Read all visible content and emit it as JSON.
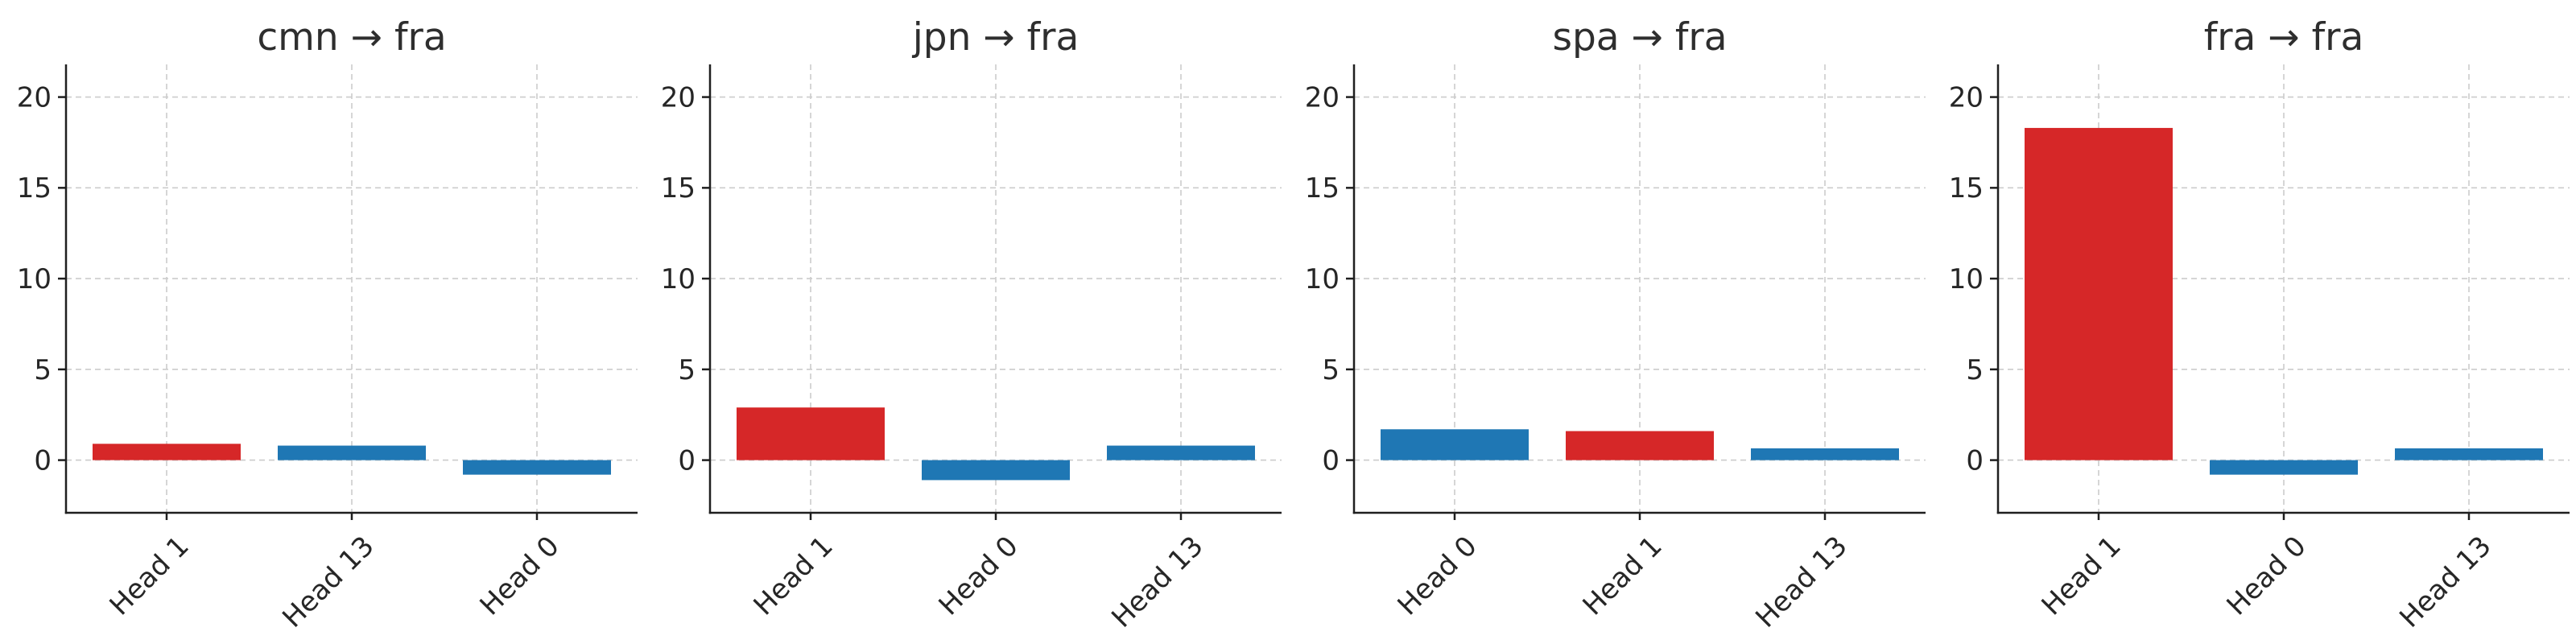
{
  "page": {
    "background": "#ffffff",
    "description_labels": {
      "arrow_glyph": "→"
    }
  },
  "palette": {
    "bar_red": "#d62728",
    "bar_blue": "#1f77b4",
    "grid": "#cccccc",
    "axis": "#1f1f1f",
    "tick_text": "#262626",
    "title_text": "#2e2e2e"
  },
  "chart_data": [
    {
      "type": "bar",
      "title": "cmn → fra",
      "categories": [
        "Head 1",
        "Head 13",
        "Head 0"
      ],
      "values": [
        0.9,
        0.8,
        -0.8
      ],
      "bar_colors": [
        "#d62728",
        "#1f77b4",
        "#1f77b4"
      ],
      "xlabel": "",
      "ylabel": "",
      "ylim": [
        -2.9,
        21.8
      ],
      "yticks": [
        0,
        5,
        10,
        15,
        20
      ],
      "grid": true,
      "legend": false,
      "xtick_rotation": 45
    },
    {
      "type": "bar",
      "title": "jpn → fra",
      "categories": [
        "Head 1",
        "Head 0",
        "Head 13"
      ],
      "values": [
        2.9,
        -1.1,
        0.8
      ],
      "bar_colors": [
        "#d62728",
        "#1f77b4",
        "#1f77b4"
      ],
      "xlabel": "",
      "ylabel": "",
      "ylim": [
        -2.9,
        21.8
      ],
      "yticks": [
        0,
        5,
        10,
        15,
        20
      ],
      "grid": true,
      "legend": false,
      "xtick_rotation": 45
    },
    {
      "type": "bar",
      "title": "spa → fra",
      "categories": [
        "Head 0",
        "Head 1",
        "Head 13"
      ],
      "values": [
        1.7,
        1.6,
        0.65
      ],
      "bar_colors": [
        "#1f77b4",
        "#d62728",
        "#1f77b4"
      ],
      "xlabel": "",
      "ylabel": "",
      "ylim": [
        -2.9,
        21.8
      ],
      "yticks": [
        0,
        5,
        10,
        15,
        20
      ],
      "grid": true,
      "legend": false,
      "xtick_rotation": 45
    },
    {
      "type": "bar",
      "title": "fra → fra",
      "categories": [
        "Head 1",
        "Head 0",
        "Head 13"
      ],
      "values": [
        18.3,
        -0.8,
        0.65
      ],
      "bar_colors": [
        "#d62728",
        "#1f77b4",
        "#1f77b4"
      ],
      "xlabel": "",
      "ylabel": "",
      "ylim": [
        -2.9,
        21.8
      ],
      "yticks": [
        0,
        5,
        10,
        15,
        20
      ],
      "grid": true,
      "legend": false,
      "xtick_rotation": 45
    }
  ]
}
